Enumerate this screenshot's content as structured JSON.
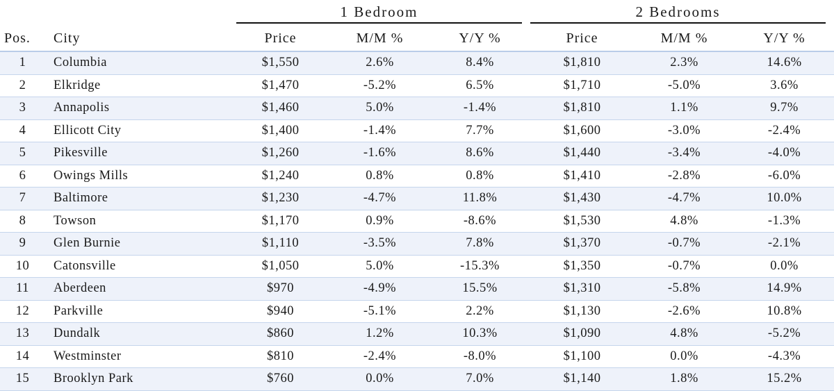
{
  "groups": {
    "one_bedroom": "1 Bedroom",
    "two_bedrooms": "2 Bedrooms"
  },
  "columns": {
    "pos": "Pos.",
    "city": "City",
    "price_1": "Price",
    "mm_1": "M/M %",
    "yy_1": "Y/Y %",
    "price_2": "Price",
    "mm_2": "M/M %",
    "yy_2": "Y/Y %"
  },
  "rows": [
    {
      "pos": "1",
      "city": "Columbia",
      "price_1": "$1,550",
      "mm_1": "2.6%",
      "yy_1": "8.4%",
      "price_2": "$1,810",
      "mm_2": "2.3%",
      "yy_2": "14.6%"
    },
    {
      "pos": "2",
      "city": "Elkridge",
      "price_1": "$1,470",
      "mm_1": "-5.2%",
      "yy_1": "6.5%",
      "price_2": "$1,710",
      "mm_2": "-5.0%",
      "yy_2": "3.6%"
    },
    {
      "pos": "3",
      "city": "Annapolis",
      "price_1": "$1,460",
      "mm_1": "5.0%",
      "yy_1": "-1.4%",
      "price_2": "$1,810",
      "mm_2": "1.1%",
      "yy_2": "9.7%"
    },
    {
      "pos": "4",
      "city": "Ellicott City",
      "price_1": "$1,400",
      "mm_1": "-1.4%",
      "yy_1": "7.7%",
      "price_2": "$1,600",
      "mm_2": "-3.0%",
      "yy_2": "-2.4%"
    },
    {
      "pos": "5",
      "city": "Pikesville",
      "price_1": "$1,260",
      "mm_1": "-1.6%",
      "yy_1": "8.6%",
      "price_2": "$1,440",
      "mm_2": "-3.4%",
      "yy_2": "-4.0%"
    },
    {
      "pos": "6",
      "city": "Owings Mills",
      "price_1": "$1,240",
      "mm_1": "0.8%",
      "yy_1": "0.8%",
      "price_2": "$1,410",
      "mm_2": "-2.8%",
      "yy_2": "-6.0%"
    },
    {
      "pos": "7",
      "city": "Baltimore",
      "price_1": "$1,230",
      "mm_1": "-4.7%",
      "yy_1": "11.8%",
      "price_2": "$1,430",
      "mm_2": "-4.7%",
      "yy_2": "10.0%"
    },
    {
      "pos": "8",
      "city": "Towson",
      "price_1": "$1,170",
      "mm_1": "0.9%",
      "yy_1": "-8.6%",
      "price_2": "$1,530",
      "mm_2": "4.8%",
      "yy_2": "-1.3%"
    },
    {
      "pos": "9",
      "city": "Glen Burnie",
      "price_1": "$1,110",
      "mm_1": "-3.5%",
      "yy_1": "7.8%",
      "price_2": "$1,370",
      "mm_2": "-0.7%",
      "yy_2": "-2.1%"
    },
    {
      "pos": "10",
      "city": "Catonsville",
      "price_1": "$1,050",
      "mm_1": "5.0%",
      "yy_1": "-15.3%",
      "price_2": "$1,350",
      "mm_2": "-0.7%",
      "yy_2": "0.0%"
    },
    {
      "pos": "11",
      "city": "Aberdeen",
      "price_1": "$970",
      "mm_1": "-4.9%",
      "yy_1": "15.5%",
      "price_2": "$1,310",
      "mm_2": "-5.8%",
      "yy_2": "14.9%"
    },
    {
      "pos": "12",
      "city": "Parkville",
      "price_1": "$940",
      "mm_1": "-5.1%",
      "yy_1": "2.2%",
      "price_2": "$1,130",
      "mm_2": "-2.6%",
      "yy_2": "10.8%"
    },
    {
      "pos": "13",
      "city": "Dundalk",
      "price_1": "$860",
      "mm_1": "1.2%",
      "yy_1": "10.3%",
      "price_2": "$1,090",
      "mm_2": "4.8%",
      "yy_2": "-5.2%"
    },
    {
      "pos": "14",
      "city": "Westminster",
      "price_1": "$810",
      "mm_1": "-2.4%",
      "yy_1": "-8.0%",
      "price_2": "$1,100",
      "mm_2": "0.0%",
      "yy_2": "-4.3%"
    },
    {
      "pos": "15",
      "city": "Brooklyn Park",
      "price_1": "$760",
      "mm_1": "0.0%",
      "yy_1": "7.0%",
      "price_2": "$1,140",
      "mm_2": "1.8%",
      "yy_2": "15.2%"
    }
  ],
  "colors": {
    "row_shade": "#eef2fa",
    "grid_line": "#c5d5ec",
    "text": "#1a1a1a",
    "group_rule": "#111111"
  }
}
